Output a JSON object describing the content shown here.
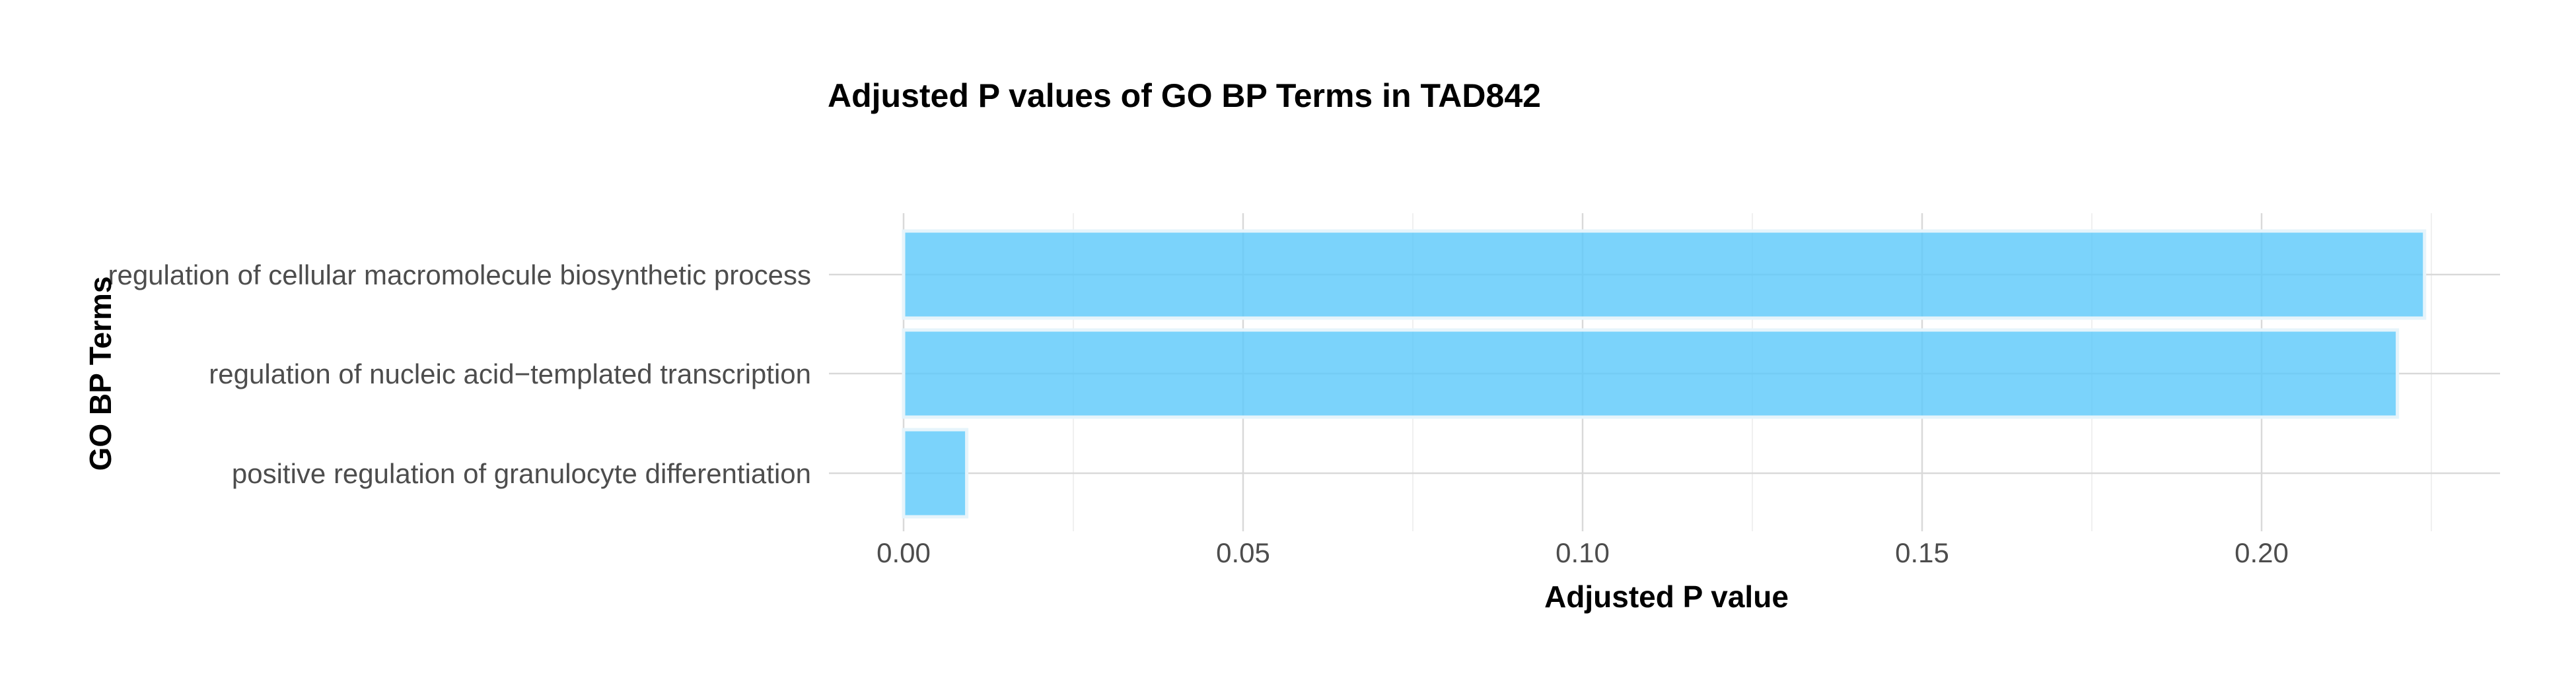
{
  "chart_data": {
    "type": "bar",
    "orientation": "horizontal",
    "title": "Adjusted P values of GO BP Terms in TAD842",
    "xlabel": "Adjusted P value",
    "ylabel": "GO BP Terms",
    "categories": [
      "regulation of cellular macromolecule biosynthetic process",
      "regulation of nucleic acid−templated transcription",
      "positive regulation of granulocyte differentiation"
    ],
    "values": [
      0.224,
      0.22,
      0.0093
    ],
    "xlim": [
      0,
      0.235
    ],
    "xticks": [
      "0.00",
      "0.05",
      "0.10",
      "0.15",
      "0.20"
    ],
    "xtick_values": [
      0,
      0.05,
      0.1,
      0.15,
      0.2
    ],
    "bar_color": "#5ac8fa",
    "grid": true,
    "legend": "none"
  }
}
